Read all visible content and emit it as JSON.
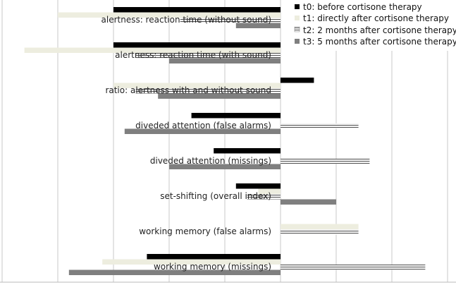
{
  "chart_data": {
    "type": "bar",
    "orientation": "horizontal",
    "title": "",
    "xlabel": "",
    "ylabel": "",
    "grid": true,
    "legend_position": "top-right",
    "xlim": [
      -5,
      3
    ],
    "categories": [
      "alertness: reaction time (without sound)",
      "alertness: reaction time (with sound)",
      "ratio: alertness with and without sound",
      "diveded attention (false alarms)",
      "diveded attention (missings)",
      "set-shifting (overall index)",
      "working memory (false alarms)",
      "working memory (missings)"
    ],
    "series": [
      {
        "name": "t0: before cortisone therapy",
        "pattern": "solid-black",
        "values": [
          -3.0,
          -3.0,
          0.6,
          -1.6,
          -1.2,
          -0.8,
          0.0,
          -2.4
        ]
      },
      {
        "name": "t1: directly after cortisone therapy",
        "pattern": "light-fill",
        "values": [
          -4.0,
          -4.6,
          -3.0,
          0.0,
          0.0,
          -0.4,
          1.4,
          -3.2
        ]
      },
      {
        "name": "t2: 2 months after cortisone therapy",
        "pattern": "horizontal-lines",
        "values": [
          -1.8,
          -2.6,
          -2.6,
          1.4,
          1.6,
          -0.6,
          1.4,
          2.6
        ]
      },
      {
        "name": "t3: 5 months after cortisone therapy",
        "pattern": "solid-gray",
        "values": [
          -0.8,
          -2.0,
          -2.2,
          -2.8,
          -2.0,
          1.0,
          0.0,
          -3.8
        ]
      }
    ],
    "colors": {
      "t0": "#000000",
      "t1": "#ededdf",
      "t2_lines": "#555555",
      "t3": "#7f7f7f",
      "grid": "#c8c8c8"
    }
  }
}
